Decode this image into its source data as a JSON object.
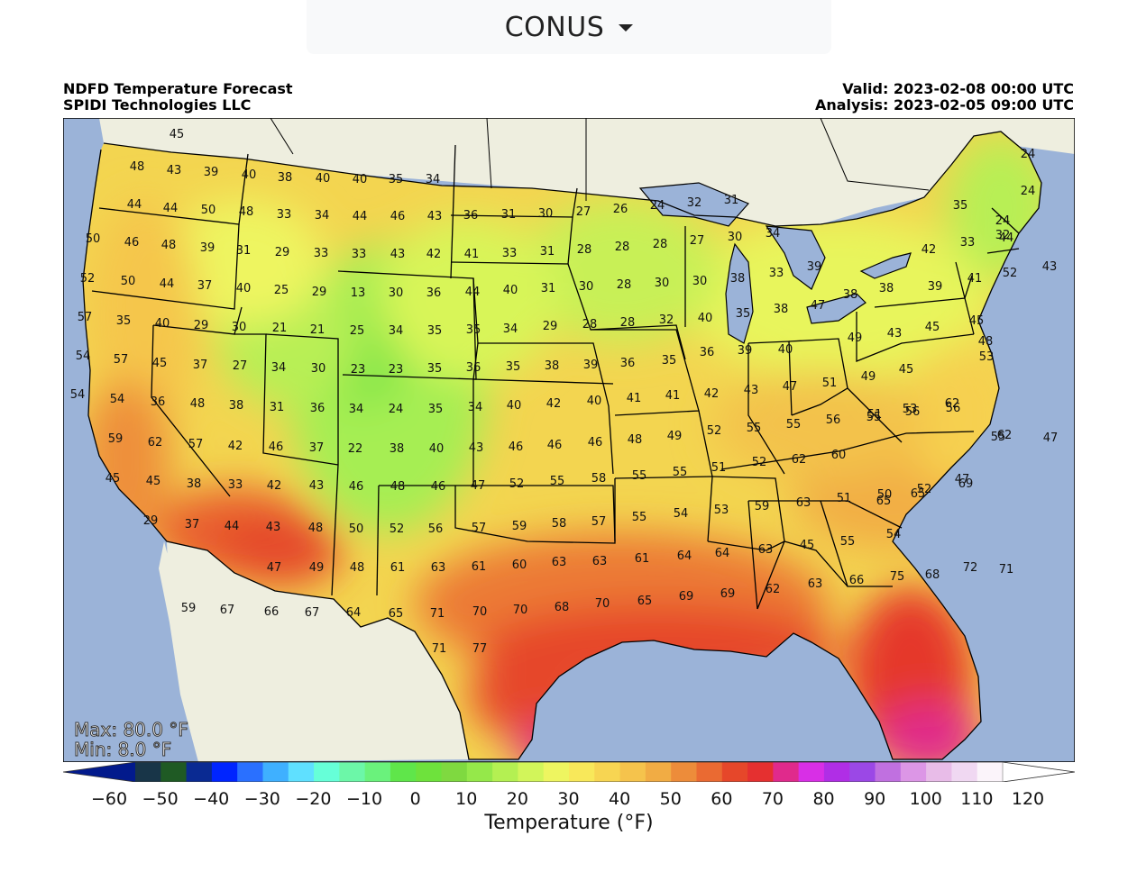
{
  "region_selector": {
    "value": "CONUS"
  },
  "header": {
    "title": "NDFD Temperature Forecast",
    "org": "SPIDI Technologies LLC",
    "valid": "Valid: 2023-02-08 00:00 UTC",
    "analysis": "Analysis: 2023-02-05 09:00 UTC"
  },
  "stats": {
    "max": "Max: 80.0 °F",
    "min": "Min: 8.0 °F"
  },
  "colorbar": {
    "title": "Temperature (°F)",
    "ticks": [
      "−60",
      "−50",
      "−40",
      "−30",
      "−20",
      "−10",
      "0",
      "10",
      "20",
      "30",
      "40",
      "50",
      "60",
      "70",
      "80",
      "90",
      "100",
      "110",
      "120"
    ],
    "range": [
      -65,
      125
    ],
    "colors": [
      "#021a8c",
      "#183548",
      "#1f5a24",
      "#0a2a92",
      "#0025ff",
      "#2a70ff",
      "#3fb0ff",
      "#5fe0ff",
      "#66ffd8",
      "#6cf7a8",
      "#6af27c",
      "#5fe64a",
      "#6ee23c",
      "#7fd940",
      "#95e84a",
      "#b4f052",
      "#d2f55a",
      "#eef560",
      "#f8e85a",
      "#f7d552",
      "#f5c34c",
      "#f1ac44",
      "#ed8c3a",
      "#ea6a32",
      "#e6472a",
      "#e53030",
      "#e02a8c",
      "#d82fe6",
      "#b02ee6",
      "#9b48e6",
      "#c070e0",
      "#dc96e6",
      "#e8bce8",
      "#f0d8f2",
      "#fbf4fa",
      "#ffffff"
    ]
  },
  "colors": {
    "ocean": "#9bb3d8",
    "land_out": "#eeeedf",
    "border": "#000000"
  },
  "station_values": [
    {
      "v": "45"
    },
    {
      "v": "48"
    },
    {
      "v": "43"
    },
    {
      "v": "39"
    },
    {
      "v": "40"
    },
    {
      "v": "38"
    },
    {
      "v": "40"
    },
    {
      "v": "40"
    },
    {
      "v": "35"
    },
    {
      "v": "34"
    },
    {
      "v": "44"
    },
    {
      "v": "44"
    },
    {
      "v": "50"
    },
    {
      "v": "48"
    },
    {
      "v": "33"
    },
    {
      "v": "34"
    },
    {
      "v": "44"
    },
    {
      "v": "46"
    },
    {
      "v": "43"
    },
    {
      "v": "36"
    },
    {
      "v": "31"
    },
    {
      "v": "30"
    },
    {
      "v": "27"
    },
    {
      "v": "26"
    },
    {
      "v": "24"
    },
    {
      "v": "32"
    },
    {
      "v": "31"
    },
    {
      "v": "24"
    },
    {
      "v": "24"
    },
    {
      "v": "35"
    },
    {
      "v": "24"
    },
    {
      "v": "50"
    },
    {
      "v": "46"
    },
    {
      "v": "48"
    },
    {
      "v": "39"
    },
    {
      "v": "31"
    },
    {
      "v": "29"
    },
    {
      "v": "33"
    },
    {
      "v": "33"
    },
    {
      "v": "43"
    },
    {
      "v": "42"
    },
    {
      "v": "41"
    },
    {
      "v": "33"
    },
    {
      "v": "31"
    },
    {
      "v": "28"
    },
    {
      "v": "28"
    },
    {
      "v": "28"
    },
    {
      "v": "27"
    },
    {
      "v": "30"
    },
    {
      "v": "34"
    },
    {
      "v": "44"
    },
    {
      "v": "42"
    },
    {
      "v": "33"
    },
    {
      "v": "32"
    },
    {
      "v": "52"
    },
    {
      "v": "50"
    },
    {
      "v": "44"
    },
    {
      "v": "37"
    },
    {
      "v": "40"
    },
    {
      "v": "25"
    },
    {
      "v": "29"
    },
    {
      "v": "13"
    },
    {
      "v": "30"
    },
    {
      "v": "36"
    },
    {
      "v": "44"
    },
    {
      "v": "40"
    },
    {
      "v": "31"
    },
    {
      "v": "30"
    },
    {
      "v": "28"
    },
    {
      "v": "30"
    },
    {
      "v": "30"
    },
    {
      "v": "38"
    },
    {
      "v": "33"
    },
    {
      "v": "39"
    },
    {
      "v": "43"
    },
    {
      "v": "38"
    },
    {
      "v": "38"
    },
    {
      "v": "39"
    },
    {
      "v": "41"
    },
    {
      "v": "52"
    },
    {
      "v": "57"
    },
    {
      "v": "35"
    },
    {
      "v": "40"
    },
    {
      "v": "29"
    },
    {
      "v": "30"
    },
    {
      "v": "21"
    },
    {
      "v": "21"
    },
    {
      "v": "25"
    },
    {
      "v": "34"
    },
    {
      "v": "35"
    },
    {
      "v": "35"
    },
    {
      "v": "34"
    },
    {
      "v": "29"
    },
    {
      "v": "28"
    },
    {
      "v": "28"
    },
    {
      "v": "32"
    },
    {
      "v": "40"
    },
    {
      "v": "35"
    },
    {
      "v": "38"
    },
    {
      "v": "47"
    },
    {
      "v": "49"
    },
    {
      "v": "43"
    },
    {
      "v": "45"
    },
    {
      "v": "45"
    },
    {
      "v": "54"
    },
    {
      "v": "57"
    },
    {
      "v": "45"
    },
    {
      "v": "37"
    },
    {
      "v": "27"
    },
    {
      "v": "34"
    },
    {
      "v": "30"
    },
    {
      "v": "23"
    },
    {
      "v": "23"
    },
    {
      "v": "35"
    },
    {
      "v": "36"
    },
    {
      "v": "35"
    },
    {
      "v": "38"
    },
    {
      "v": "39"
    },
    {
      "v": "36"
    },
    {
      "v": "35"
    },
    {
      "v": "36"
    },
    {
      "v": "39"
    },
    {
      "v": "40"
    },
    {
      "v": "53"
    },
    {
      "v": "45"
    },
    {
      "v": "48"
    },
    {
      "v": "54"
    },
    {
      "v": "54"
    },
    {
      "v": "36"
    },
    {
      "v": "48"
    },
    {
      "v": "38"
    },
    {
      "v": "31"
    },
    {
      "v": "36"
    },
    {
      "v": "34"
    },
    {
      "v": "24"
    },
    {
      "v": "35"
    },
    {
      "v": "34"
    },
    {
      "v": "40"
    },
    {
      "v": "42"
    },
    {
      "v": "40"
    },
    {
      "v": "41"
    },
    {
      "v": "41"
    },
    {
      "v": "42"
    },
    {
      "v": "43"
    },
    {
      "v": "47"
    },
    {
      "v": "51"
    },
    {
      "v": "49"
    },
    {
      "v": "51"
    },
    {
      "v": "53"
    },
    {
      "v": "62"
    },
    {
      "v": "59"
    },
    {
      "v": "62"
    },
    {
      "v": "57"
    },
    {
      "v": "42"
    },
    {
      "v": "46"
    },
    {
      "v": "37"
    },
    {
      "v": "22"
    },
    {
      "v": "38"
    },
    {
      "v": "40"
    },
    {
      "v": "43"
    },
    {
      "v": "46"
    },
    {
      "v": "46"
    },
    {
      "v": "46"
    },
    {
      "v": "48"
    },
    {
      "v": "49"
    },
    {
      "v": "52"
    },
    {
      "v": "55"
    },
    {
      "v": "55"
    },
    {
      "v": "56"
    },
    {
      "v": "55"
    },
    {
      "v": "56"
    },
    {
      "v": "56"
    },
    {
      "v": "62"
    },
    {
      "v": "55"
    },
    {
      "v": "45"
    },
    {
      "v": "45"
    },
    {
      "v": "38"
    },
    {
      "v": "33"
    },
    {
      "v": "42"
    },
    {
      "v": "43"
    },
    {
      "v": "46"
    },
    {
      "v": "48"
    },
    {
      "v": "46"
    },
    {
      "v": "47"
    },
    {
      "v": "52"
    },
    {
      "v": "55"
    },
    {
      "v": "58"
    },
    {
      "v": "55"
    },
    {
      "v": "55"
    },
    {
      "v": "51"
    },
    {
      "v": "52"
    },
    {
      "v": "62"
    },
    {
      "v": "60"
    },
    {
      "v": "65"
    },
    {
      "v": "65"
    },
    {
      "v": "69"
    },
    {
      "v": "47"
    },
    {
      "v": "29"
    },
    {
      "v": "37"
    },
    {
      "v": "44"
    },
    {
      "v": "43"
    },
    {
      "v": "48"
    },
    {
      "v": "50"
    },
    {
      "v": "52"
    },
    {
      "v": "56"
    },
    {
      "v": "57"
    },
    {
      "v": "59"
    },
    {
      "v": "58"
    },
    {
      "v": "57"
    },
    {
      "v": "55"
    },
    {
      "v": "54"
    },
    {
      "v": "53"
    },
    {
      "v": "59"
    },
    {
      "v": "63"
    },
    {
      "v": "51"
    },
    {
      "v": "50"
    },
    {
      "v": "52"
    },
    {
      "v": "47"
    },
    {
      "v": "47"
    },
    {
      "v": "49"
    },
    {
      "v": "48"
    },
    {
      "v": "61"
    },
    {
      "v": "63"
    },
    {
      "v": "61"
    },
    {
      "v": "60"
    },
    {
      "v": "63"
    },
    {
      "v": "63"
    },
    {
      "v": "61"
    },
    {
      "v": "64"
    },
    {
      "v": "64"
    },
    {
      "v": "63"
    },
    {
      "v": "45"
    },
    {
      "v": "55"
    },
    {
      "v": "54"
    },
    {
      "v": "59"
    },
    {
      "v": "67"
    },
    {
      "v": "66"
    },
    {
      "v": "67"
    },
    {
      "v": "64"
    },
    {
      "v": "65"
    },
    {
      "v": "71"
    },
    {
      "v": "70"
    },
    {
      "v": "70"
    },
    {
      "v": "68"
    },
    {
      "v": "70"
    },
    {
      "v": "65"
    },
    {
      "v": "69"
    },
    {
      "v": "69"
    },
    {
      "v": "62"
    },
    {
      "v": "63"
    },
    {
      "v": "66"
    },
    {
      "v": "75"
    },
    {
      "v": "68"
    },
    {
      "v": "72"
    },
    {
      "v": "71"
    },
    {
      "v": "71"
    },
    {
      "v": "77"
    }
  ]
}
